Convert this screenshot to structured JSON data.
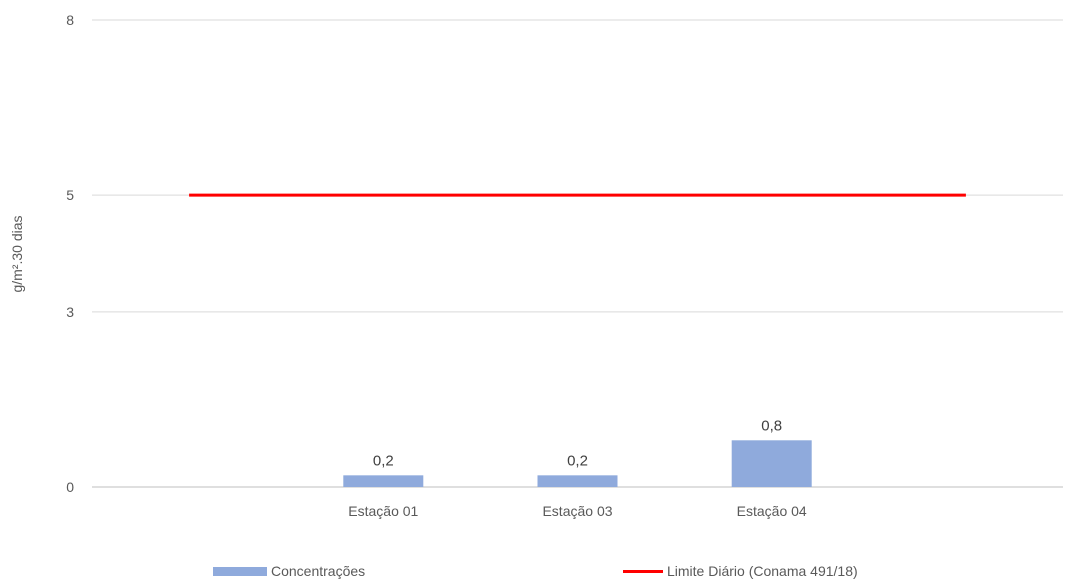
{
  "chart_data": {
    "type": "bar",
    "title": "",
    "xlabel": "",
    "ylabel": "g/m².30 dias",
    "ylim": [
      0,
      8
    ],
    "yticks": [
      "0",
      "3",
      "5",
      "8"
    ],
    "grid": true,
    "legend_position": "bottom",
    "categories": [
      "Estação 01",
      "Estação 03",
      "Estação 04"
    ],
    "series": [
      {
        "name": "Concentrações",
        "kind": "bar",
        "color": "#8faadc",
        "values": [
          0.2,
          0.2,
          0.8
        ],
        "labels": [
          "0,2",
          "0,2",
          "0,8"
        ]
      },
      {
        "name": "Limite Diário (Conama 491/18)",
        "kind": "line",
        "color": "#ff0000",
        "value": 5
      }
    ]
  }
}
